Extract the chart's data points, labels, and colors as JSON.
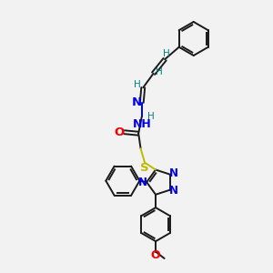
{
  "bg_color": "#f2f2f2",
  "bond_color": "#1a1a1a",
  "n_color": "#0000ee",
  "o_color": "#ee0000",
  "s_color": "#bbbb00",
  "h_color": "#008080",
  "line_width": 1.4,
  "figsize": [
    3.0,
    3.0
  ],
  "dpi": 100,
  "xlim": [
    0,
    10
  ],
  "ylim": [
    0,
    10
  ],
  "hex_r": 0.62,
  "tri_r": 0.48
}
